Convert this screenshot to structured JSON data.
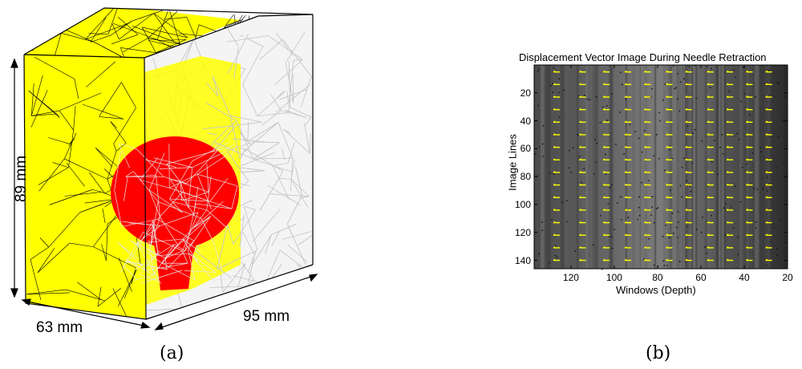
{
  "panel_a": {
    "caption": "(a)",
    "dim_height": "89 mm",
    "dim_width": "63 mm",
    "dim_depth": "95 mm",
    "colors": {
      "tissue": "#ffff00",
      "lesion": "#ff0000",
      "mesh": "#c8c8c8",
      "edge": "#000000"
    }
  },
  "panel_b": {
    "caption": "(b)",
    "title": "Displacement Vector Image During Needle Retraction",
    "xlabel": "Windows (Depth)",
    "ylabel": "Image Lines",
    "xticks": [
      "120",
      "100",
      "80",
      "60",
      "40",
      "20"
    ],
    "yticks": [
      "20",
      "40",
      "60",
      "80",
      "100",
      "120",
      "140"
    ],
    "colors": {
      "background": "#3a3a3a",
      "vectors": "#ffff00"
    }
  },
  "chart_data": {
    "type": "heatmap",
    "title": "Displacement Vector Image During Needle Retraction",
    "xlabel": "Windows (Depth)",
    "ylabel": "Image Lines",
    "xlim": [
      137,
      20
    ],
    "ylim": [
      0,
      146
    ],
    "xticks": [
      120,
      100,
      80,
      60,
      40,
      20
    ],
    "yticks": [
      20,
      40,
      60,
      80,
      100,
      120,
      140
    ],
    "vector_columns": [
      127,
      115,
      104,
      94,
      85,
      75,
      66,
      56,
      47,
      38,
      29
    ],
    "vector_rows": [
      5,
      14,
      23,
      32,
      41,
      50,
      59,
      68,
      77,
      86,
      95,
      104,
      113,
      122,
      131,
      140
    ],
    "vector_direction": "left"
  }
}
